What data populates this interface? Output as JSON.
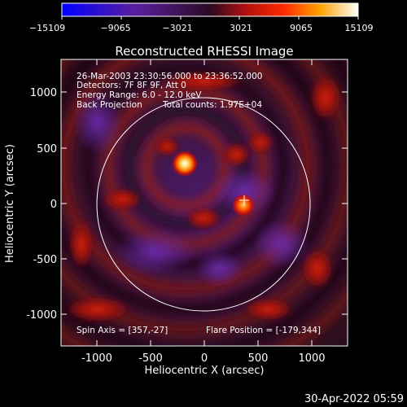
{
  "colorbar": {
    "tick_labels": [
      "−15109",
      "−9065",
      "−3021",
      "3021",
      "9065",
      "15109"
    ],
    "ticks": [
      -15109,
      -9065,
      -3021,
      3021,
      9065,
      15109
    ],
    "range": [
      -15109,
      15109
    ]
  },
  "title": "Reconstructed RHESSI Image",
  "info": {
    "line1": "26-Mar-2003 23:30:56.000 to 23:36:52.000",
    "line2": "Detectors: 7F 8F 9F, Att 0",
    "line3": "Energy Range: 6.0 - 12.0 keV",
    "line4": "Back Projection",
    "line4b": "Total counts: 1.97E+04"
  },
  "bottom_info": {
    "spin_axis": "Spin Axis = [357,-27]",
    "flare_position": "Flare Position = [-179,344]"
  },
  "axes": {
    "xlabel": "Heliocentric X (arcsec)",
    "ylabel": "Heliocentric Y (arcsec)",
    "x_ticks": [
      "-1000",
      "-500",
      "0",
      "500",
      "1000"
    ],
    "y_ticks": [
      "1000",
      "500",
      "0",
      "-500",
      "-1000"
    ]
  },
  "timestamp": "30-Apr-2022 05:59",
  "colors": {
    "background": "#000000",
    "text": "#ffffff"
  }
}
